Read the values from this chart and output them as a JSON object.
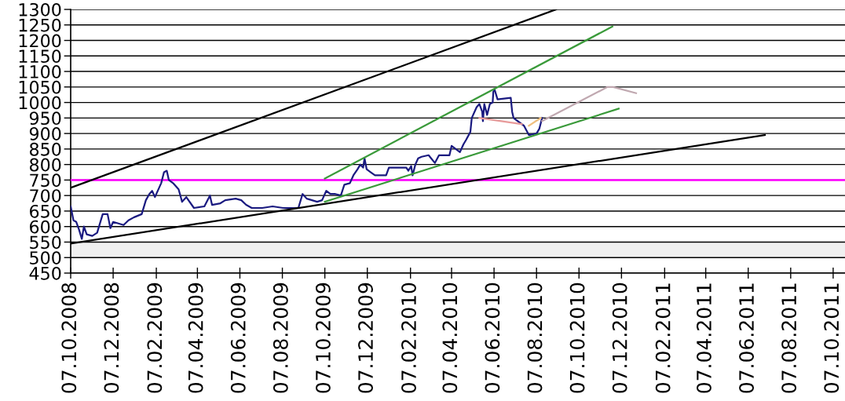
{
  "chart_data": {
    "type": "line",
    "series": [
      {
        "color": "#1a1a80",
        "x": [
          "2008-10-07",
          "2008-10-11",
          "2008-10-15",
          "2008-10-19",
          "2008-10-23",
          "2008-10-26",
          "2008-10-30",
          "2008-11-07",
          "2008-11-14",
          "2008-11-22",
          "2008-11-29",
          "2008-12-03",
          "2008-12-07",
          "2008-12-22",
          "2008-12-29",
          "2009-01-06",
          "2009-01-17",
          "2009-01-23",
          "2009-01-28",
          "2009-02-01",
          "2009-02-05",
          "2009-02-14",
          "2009-02-18",
          "2009-02-22",
          "2009-02-25",
          "2009-03-03",
          "2009-03-11",
          "2009-03-16",
          "2009-03-22",
          "2009-04-02",
          "2009-04-17",
          "2009-04-25",
          "2009-04-28",
          "2009-05-10",
          "2009-05-17",
          "2009-06-01",
          "2009-06-09",
          "2009-06-16",
          "2009-06-24",
          "2009-07-09",
          "2009-07-24",
          "2009-08-08",
          "2009-08-19",
          "2009-08-30",
          "2009-09-05",
          "2009-09-11",
          "2009-09-26",
          "2009-10-03",
          "2009-10-09",
          "2009-10-15",
          "2009-10-22",
          "2009-10-30",
          "2009-11-04",
          "2009-11-12",
          "2009-11-17",
          "2009-11-23",
          "2009-11-27",
          "2009-12-01",
          "2009-12-03",
          "2009-12-06",
          "2009-12-12",
          "2009-12-18",
          "2009-12-23",
          "2010-01-03",
          "2010-01-07",
          "2010-01-20",
          "2010-02-01",
          "2010-02-04",
          "2010-02-08",
          "2010-02-10",
          "2010-02-14",
          "2010-02-18",
          "2010-02-23",
          "2010-03-05",
          "2010-03-14",
          "2010-03-20",
          "2010-04-04",
          "2010-04-07",
          "2010-04-19",
          "2010-04-24",
          "2010-04-28",
          "2010-05-04",
          "2010-05-06",
          "2010-05-13",
          "2010-05-17",
          "2010-05-21",
          "2010-05-22",
          "2010-05-24",
          "2010-05-28",
          "2010-06-01",
          "2010-06-05",
          "2010-06-06",
          "2010-06-08",
          "2010-06-12",
          "2010-07-01",
          "2010-07-03",
          "2010-07-05",
          "2010-07-20",
          "2010-07-27",
          "2010-08-07",
          "2010-08-11",
          "2010-08-15"
        ],
        "values": [
          665,
          620,
          615,
          590,
          560,
          600,
          575,
          570,
          580,
          640,
          640,
          595,
          615,
          605,
          620,
          630,
          640,
          685,
          705,
          715,
          695,
          740,
          775,
          780,
          750,
          740,
          720,
          680,
          695,
          660,
          665,
          700,
          670,
          675,
          685,
          690,
          685,
          670,
          660,
          660,
          665,
          660,
          660,
          660,
          705,
          690,
          680,
          685,
          715,
          705,
          705,
          700,
          735,
          740,
          765,
          785,
          800,
          790,
          820,
          785,
          775,
          765,
          765,
          765,
          790,
          790,
          790,
          780,
          795,
          765,
          800,
          820,
          825,
          830,
          805,
          830,
          830,
          860,
          840,
          865,
          880,
          905,
          950,
          985,
          995,
          970,
          940,
          995,
          960,
          995,
          1000,
          1035,
          1040,
          1010,
          1015,
          970,
          950,
          925,
          895,
          900,
          915,
          950
        ]
      },
      {
        "color": "#000000",
        "x": [
          "2008-10-07",
          "2010-09-04"
        ],
        "values": [
          725,
          1300
        ]
      },
      {
        "color": "#000000",
        "x": [
          "2008-10-07",
          "2011-07-01"
        ],
        "values": [
          545,
          895
        ]
      },
      {
        "color": "#3a9a3a",
        "x": [
          "2009-10-07",
          "2010-11-24"
        ],
        "values": [
          755,
          1245
        ]
      },
      {
        "color": "#3a9a3a",
        "x": [
          "2009-10-07",
          "2010-12-03"
        ],
        "values": [
          680,
          980
        ]
      },
      {
        "color": "#e89a9a",
        "x": [
          "2010-05-17",
          "2010-07-17"
        ],
        "values": [
          950,
          930
        ]
      },
      {
        "color": "#f0c080",
        "x": [
          "2010-07-27",
          "2010-08-13"
        ],
        "values": [
          925,
          950
        ]
      },
      {
        "color": "#c0a8b0",
        "x": [
          "2010-08-15",
          "2010-11-17",
          "2010-11-25",
          "2010-12-28"
        ],
        "values": [
          940,
          1050,
          1050,
          1030
        ]
      }
    ],
    "xlim": [
      "2008-10-07",
      "2011-10-24"
    ],
    "xticks": [
      {
        "value": "2008-10-07",
        "label": "07.10.2008"
      },
      {
        "value": "2008-12-07",
        "label": "07.12.2008"
      },
      {
        "value": "2009-02-07",
        "label": "07.02.2009"
      },
      {
        "value": "2009-04-07",
        "label": "07.04.2009"
      },
      {
        "value": "2009-06-07",
        "label": "07.06.2009"
      },
      {
        "value": "2009-08-07",
        "label": "07.08.2009"
      },
      {
        "value": "2009-10-07",
        "label": "07.10.2009"
      },
      {
        "value": "2009-12-07",
        "label": "07.12.2009"
      },
      {
        "value": "2010-02-07",
        "label": "07.02.2010"
      },
      {
        "value": "2010-04-07",
        "label": "07.04.2010"
      },
      {
        "value": "2010-06-07",
        "label": "07.06.2010"
      },
      {
        "value": "2010-08-07",
        "label": "07.08.2010"
      },
      {
        "value": "2010-10-07",
        "label": "07.10.2010"
      },
      {
        "value": "2010-12-07",
        "label": "07.12.2010"
      },
      {
        "value": "2011-02-07",
        "label": "07.02.2011"
      },
      {
        "value": "2011-04-07",
        "label": "07.04.2011"
      },
      {
        "value": "2011-06-07",
        "label": "07.06.2011"
      },
      {
        "value": "2011-08-07",
        "label": "07.08.2011"
      },
      {
        "value": "2011-10-07",
        "label": "07.10.2011"
      }
    ],
    "ylim": [
      450,
      1300
    ],
    "yticks": [
      450,
      500,
      550,
      600,
      650,
      700,
      750,
      800,
      850,
      900,
      950,
      1000,
      1050,
      1100,
      1150,
      1200,
      1250,
      1300
    ],
    "grid": "y",
    "ref_lines": [
      {
        "axis": "y",
        "value": 750,
        "color": "#ff00ff"
      }
    ],
    "bands": [
      {
        "axis": "y",
        "from": 500,
        "to": 550,
        "color": "#f0f0f0"
      }
    ]
  }
}
